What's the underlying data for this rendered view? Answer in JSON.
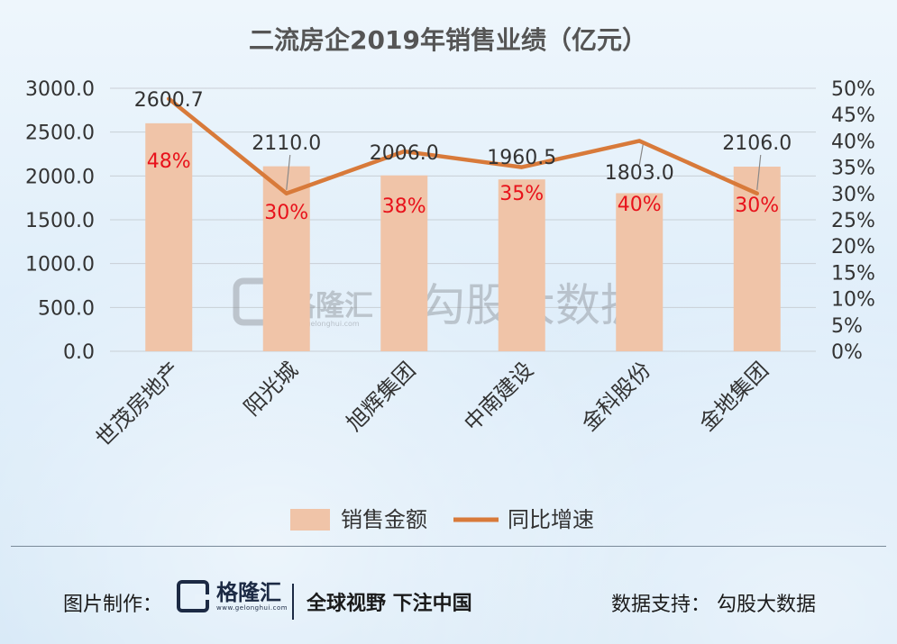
{
  "chart_data": {
    "type": "bar+line",
    "title": "二流房企2019年销售业绩（亿元）",
    "categories": [
      "世茂房地产",
      "阳光城",
      "旭辉集团",
      "中南建设",
      "金科股份",
      "金地集团"
    ],
    "series": [
      {
        "name": "销售金额",
        "kind": "bar",
        "axis": "left",
        "values": [
          2600.7,
          2110.0,
          2006.0,
          1960.5,
          1803.0,
          2106.0
        ],
        "labels": [
          "2600.7",
          "2110.0",
          "2006.0",
          "1960.5",
          "1803.0",
          "2106.0"
        ],
        "color": "#f0c4a8"
      },
      {
        "name": "同比增速",
        "kind": "line",
        "axis": "right",
        "values": [
          48,
          30,
          38,
          35,
          40,
          30
        ],
        "labels": [
          "48%",
          "30%",
          "38%",
          "35%",
          "40%",
          "30%"
        ],
        "color": "#d87a3a"
      }
    ],
    "y_left": {
      "min": 0,
      "max": 3000,
      "ticks": [
        "0.0",
        "500.0",
        "1000.0",
        "1500.0",
        "2000.0",
        "2500.0",
        "3000.0"
      ]
    },
    "y_right": {
      "min": 0,
      "max": 50,
      "ticks": [
        "0%",
        "5%",
        "10%",
        "15%",
        "20%",
        "25%",
        "30%",
        "35%",
        "40%",
        "45%",
        "50%"
      ]
    },
    "grid": true,
    "legend": "bottom",
    "label_color_percent": "#e8121b"
  },
  "watermark": {
    "brand": "格隆汇",
    "url": "www.gelonghui.com",
    "text": "勾股大数据"
  },
  "footer": {
    "credit": "图片制作：",
    "brand_name": "格隆汇",
    "brand_url": "www.gelonghui.com",
    "slogan": "全球视野 下注中国",
    "support": "数据支持：  勾股大数据"
  }
}
